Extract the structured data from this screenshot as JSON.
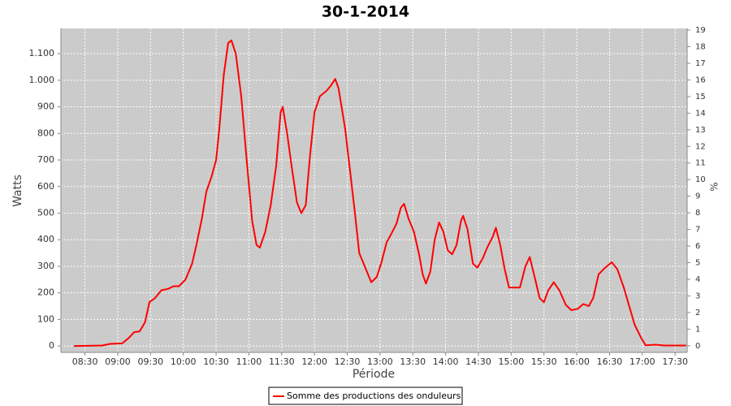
{
  "chart_data": {
    "type": "line",
    "title": "30-1-2014",
    "xlabel": "Période",
    "ylabel": "Watts",
    "y2label": "%",
    "x": [
      "08:20",
      "08:46",
      "08:53",
      "09:04",
      "09:10",
      "09:15",
      "09:20",
      "09:25",
      "09:29",
      "09:34",
      "09:40",
      "09:46",
      "09:51",
      "09:56",
      "10:02",
      "10:08",
      "10:12",
      "10:17",
      "10:21",
      "10:26",
      "10:30",
      "10:33",
      "10:37",
      "10:41",
      "10:44",
      "10:48",
      "10:53",
      "10:58",
      "11:03",
      "11:07",
      "11:10",
      "11:15",
      "11:20",
      "11:25",
      "11:29",
      "11:31",
      "11:35",
      "11:39",
      "11:44",
      "11:48",
      "11:52",
      "11:56",
      "12:00",
      "12:05",
      "12:11",
      "12:15",
      "12:19",
      "12:22",
      "12:28",
      "12:32",
      "12:37",
      "12:41",
      "12:47",
      "12:52",
      "12:57",
      "13:01",
      "13:06",
      "13:10",
      "13:15",
      "13:19",
      "13:22",
      "13:26",
      "13:31",
      "13:36",
      "13:39",
      "13:42",
      "13:46",
      "13:50",
      "13:54",
      "13:58",
      "14:02",
      "14:06",
      "14:10",
      "14:14",
      "14:16",
      "14:20",
      "14:25",
      "14:29",
      "14:34",
      "14:38",
      "14:43",
      "14:46",
      "14:50",
      "14:54",
      "14:58",
      "15:03",
      "15:08",
      "15:13",
      "15:17",
      "15:22",
      "15:26",
      "15:30",
      "15:34",
      "15:39",
      "15:44",
      "15:50",
      "15:55",
      "16:01",
      "16:06",
      "16:11",
      "16:15",
      "16:20",
      "16:26",
      "16:32",
      "16:37",
      "16:43",
      "16:48",
      "16:53",
      "16:59",
      "17:03",
      "17:12",
      "17:20",
      "17:40"
    ],
    "series": [
      {
        "name": "Somme des productions des onduleurs",
        "color": "#ff0000",
        "values": [
          0,
          2,
          8,
          10,
          30,
          52,
          55,
          90,
          165,
          180,
          210,
          215,
          225,
          225,
          250,
          310,
          380,
          480,
          580,
          640,
          700,
          820,
          1020,
          1140,
          1150,
          1100,
          940,
          700,
          470,
          380,
          370,
          430,
          530,
          680,
          880,
          900,
          800,
          680,
          540,
          500,
          530,
          720,
          880,
          940,
          960,
          980,
          1005,
          970,
          820,
          680,
          500,
          350,
          290,
          240,
          260,
          310,
          390,
          420,
          460,
          520,
          535,
          480,
          430,
          340,
          270,
          235,
          280,
          400,
          465,
          430,
          360,
          345,
          380,
          470,
          490,
          440,
          310,
          295,
          330,
          370,
          410,
          445,
          380,
          290,
          220,
          220,
          220,
          300,
          335,
          250,
          180,
          165,
          210,
          240,
          210,
          155,
          135,
          140,
          158,
          150,
          180,
          270,
          295,
          315,
          290,
          220,
          150,
          80,
          30,
          3,
          5,
          2,
          2
        ]
      }
    ],
    "xlim": [
      "08:08",
      "17:41"
    ],
    "xticks": [
      "08:30",
      "09:00",
      "09:30",
      "10:00",
      "10:30",
      "11:00",
      "11:30",
      "12:00",
      "12:30",
      "13:00",
      "13:30",
      "14:00",
      "14:30",
      "15:00",
      "15:30",
      "16:00",
      "16:30",
      "17:00",
      "17:30"
    ],
    "ylim": [
      -24,
      1195
    ],
    "yticks": [
      0,
      100,
      200,
      300,
      400,
      500,
      600,
      700,
      800,
      900,
      {
        "value": 1000,
        "label": "1.000"
      },
      {
        "value": 1100,
        "label": "1.100"
      }
    ],
    "y2lim": [
      -0.4,
      19.1
    ],
    "y2ticks": [
      0,
      1,
      2,
      3,
      4,
      5,
      6,
      7,
      8,
      9,
      10,
      11,
      12,
      13,
      14,
      15,
      16,
      17,
      18,
      19
    ],
    "grid": true,
    "legend": "bottom"
  }
}
